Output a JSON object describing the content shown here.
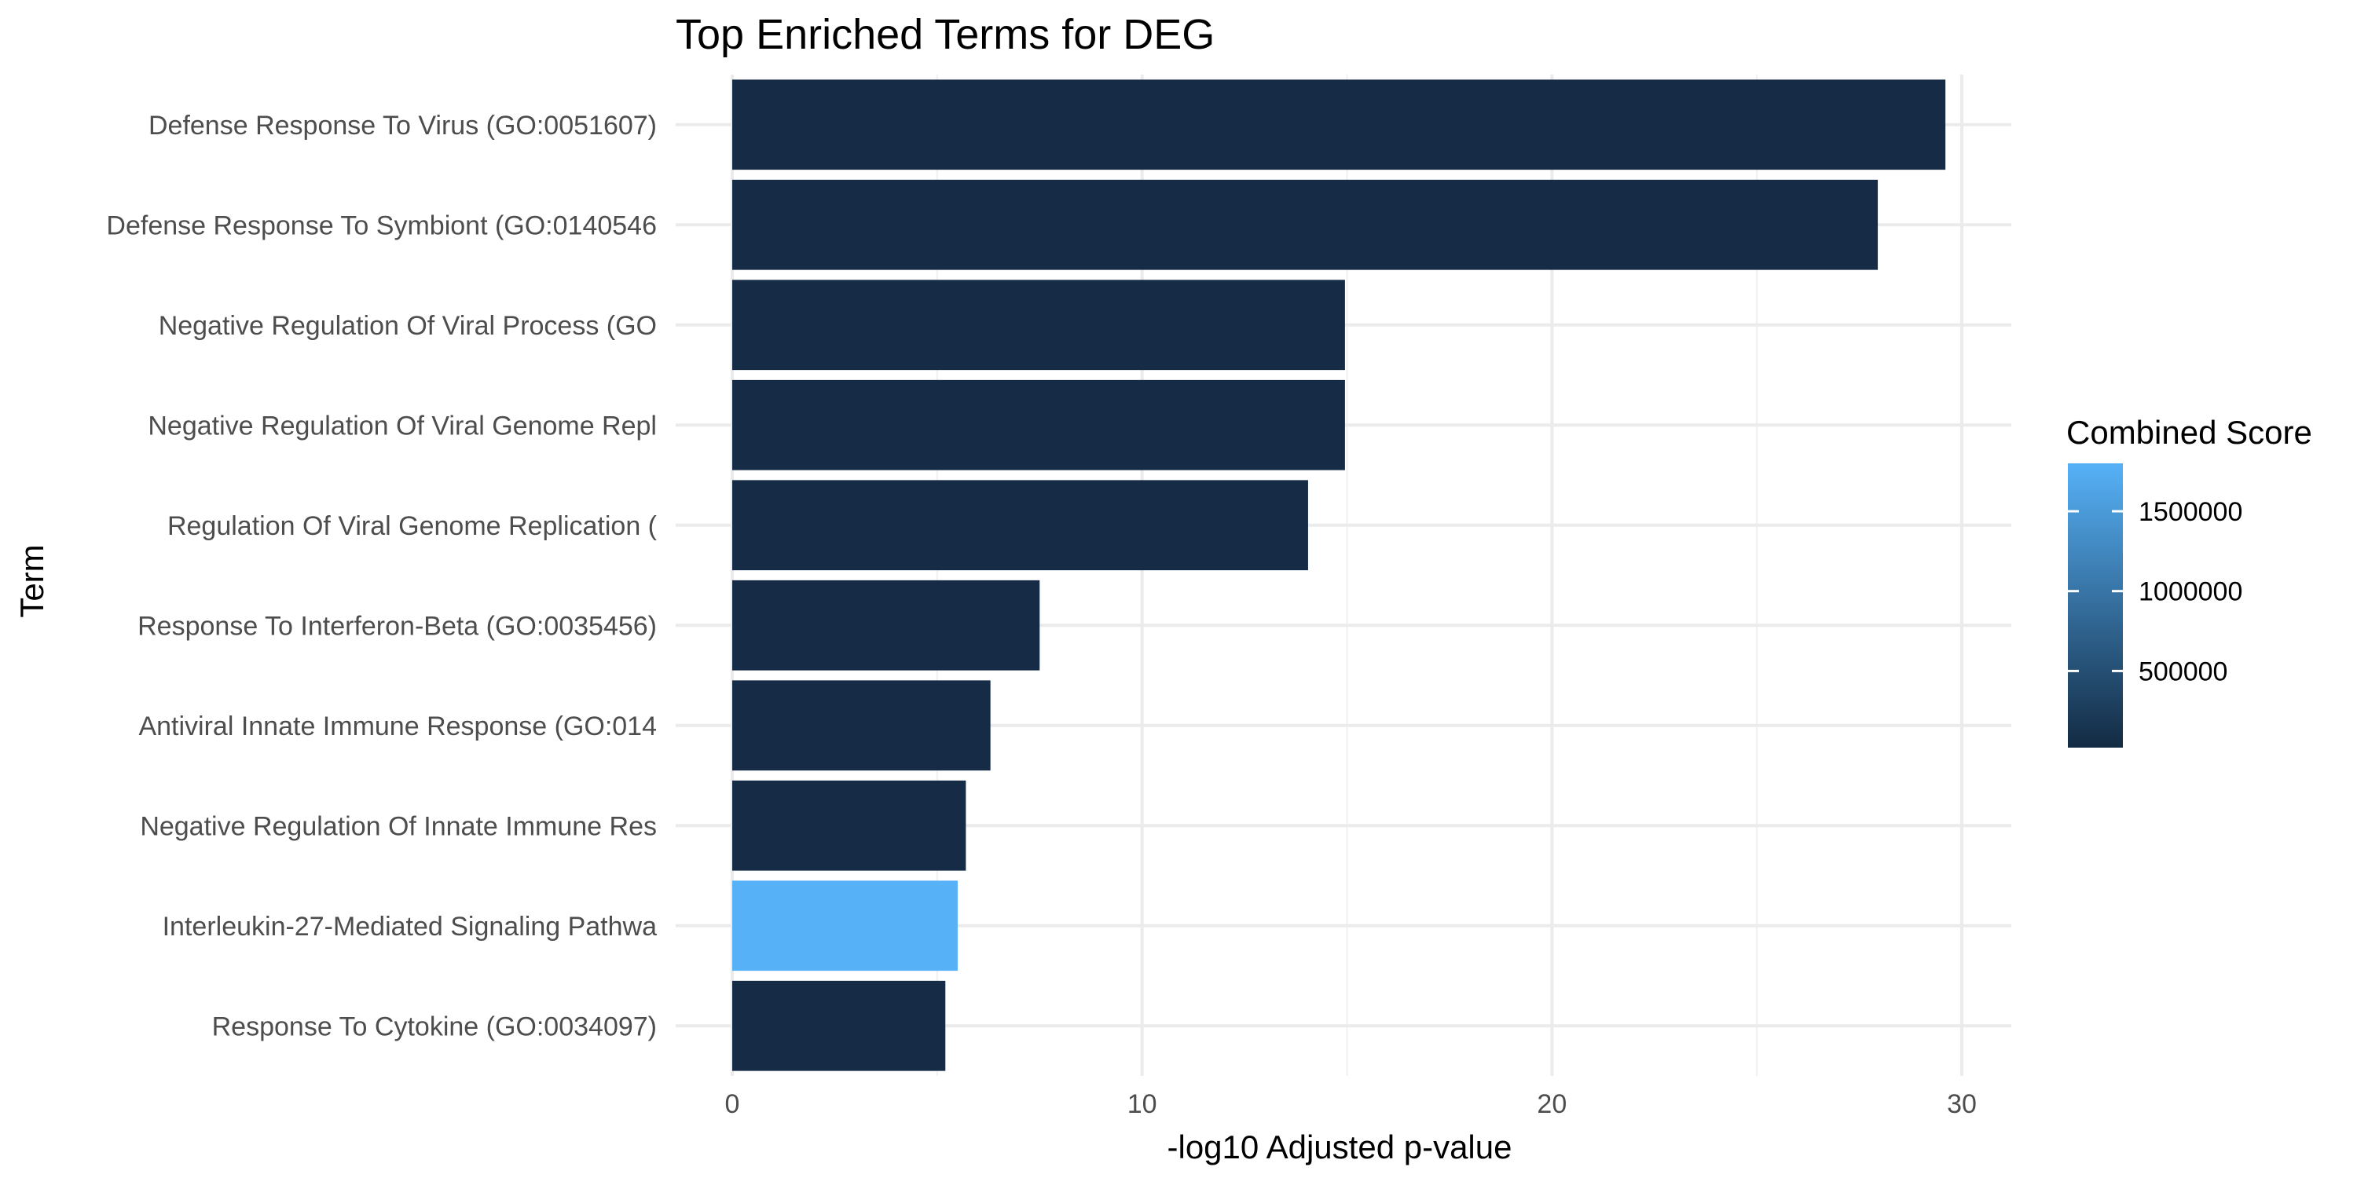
{
  "chart_data": {
    "type": "bar",
    "orientation": "horizontal",
    "title": "Top Enriched Terms for DEG",
    "xlabel": "-log10 Adjusted p-value",
    "ylabel": "Term",
    "xlim": [
      0,
      31
    ],
    "xticks": [
      0,
      10,
      20,
      30
    ],
    "grid": true,
    "categories": [
      "Defense Response To Virus (GO:0051607)",
      "Defense Response To Symbiont (GO:0140546",
      "Negative Regulation Of Viral Process (GO",
      "Negative Regulation Of Viral Genome Repl",
      "Regulation Of Viral Genome Replication (",
      "Response To Interferon-Beta (GO:0035456)",
      "Antiviral Innate Immune Response (GO:014",
      "Negative Regulation Of Innate Immune Res",
      "Interleukin-27-Mediated Signaling Pathwa",
      "Response To Cytokine (GO:0034097)"
    ],
    "values": [
      29.6,
      27.95,
      14.95,
      14.95,
      14.05,
      7.5,
      6.3,
      5.7,
      5.5,
      5.2
    ],
    "fill_colors": [
      "#162b45",
      "#162b45",
      "#162b45",
      "#162b45",
      "#162b45",
      "#162b45",
      "#162b45",
      "#162b45",
      "#56b1f7",
      "#162b45"
    ],
    "legend": {
      "title": "Combined Score",
      "placement": "right",
      "ticks": [
        {
          "label": "1500000",
          "value": 1500000
        },
        {
          "label": "1000000",
          "value": 1000000
        },
        {
          "label": "500000",
          "value": 500000
        }
      ],
      "range": [
        20000,
        1800000
      ],
      "low_color": "#132b43",
      "high_color": "#56b1f7"
    }
  }
}
